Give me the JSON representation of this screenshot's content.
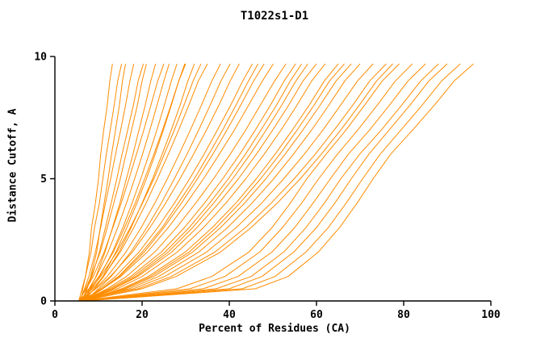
{
  "chart_data": {
    "type": "line",
    "title": "T1022s1-D1",
    "xlabel": "Percent of Residues (CA)",
    "ylabel": "Distance Cutoff, A",
    "xlim": [
      0,
      100
    ],
    "ylim": [
      0,
      10
    ],
    "x_ticks": [
      0,
      20,
      40,
      60,
      80,
      100
    ],
    "y_ticks": [
      0,
      5,
      10
    ],
    "grid": false,
    "legend": "none",
    "line_color": "#ff8c00",
    "axis_color": "#000000",
    "y_levels": [
      0,
      0.5,
      1,
      2,
      3,
      4,
      5,
      6,
      7,
      8,
      9,
      9.7
    ],
    "series": [
      {
        "x": [
          6.0,
          6.4,
          7.0,
          7.9,
          8.4,
          9.3,
          10.0,
          10.5,
          11.2,
          12.0,
          12.6,
          13.2
        ]
      },
      {
        "x": [
          5.5,
          6.2,
          7.0,
          8.3,
          9.1,
          10.2,
          11.0,
          11.8,
          12.7,
          13.6,
          14.4,
          15.3
        ]
      },
      {
        "x": [
          6.5,
          7.4,
          8.2,
          9.6,
          10.4,
          11.3,
          12.2,
          13.0,
          13.9,
          14.8,
          15.5,
          16.2
        ]
      },
      {
        "x": [
          5.8,
          6.8,
          7.8,
          9.3,
          10.5,
          11.6,
          12.8,
          13.9,
          15.1,
          16.2,
          17.2,
          18.1
        ]
      },
      {
        "x": [
          6.2,
          7.3,
          8.5,
          10.2,
          11.6,
          12.9,
          14.2,
          15.4,
          16.7,
          18.0,
          19.1,
          20.3
        ]
      },
      {
        "x": [
          5.6,
          7.0,
          8.3,
          10.4,
          12.0,
          13.5,
          15.0,
          16.3,
          17.6,
          18.9,
          20.0,
          21.0
        ]
      },
      {
        "x": [
          6.8,
          8.0,
          9.4,
          11.5,
          13.2,
          14.9,
          16.4,
          17.9,
          19.3,
          20.7,
          22.0,
          23.1
        ]
      },
      {
        "x": [
          5.4,
          7.2,
          8.8,
          11.3,
          13.3,
          15.2,
          17.0,
          18.7,
          20.4,
          22.0,
          23.6,
          25.0
        ]
      },
      {
        "x": [
          6.0,
          7.8,
          9.5,
          12.2,
          14.4,
          16.4,
          18.3,
          20.1,
          21.8,
          23.4,
          25.0,
          26.2
        ]
      },
      {
        "x": [
          6.4,
          8.4,
          10.3,
          13.2,
          15.6,
          17.7,
          19.7,
          21.6,
          23.4,
          25.1,
          26.7,
          28.0
        ]
      },
      {
        "x": [
          5.7,
          8.0,
          10.1,
          13.4,
          16.0,
          18.4,
          20.6,
          22.7,
          24.7,
          26.6,
          28.4,
          30.0
        ]
      },
      {
        "x": [
          6.6,
          9.0,
          11.2,
          14.7,
          17.5,
          20.0,
          22.4,
          24.6,
          26.7,
          28.7,
          30.5,
          32.0
        ]
      },
      {
        "x": [
          5.9,
          8.6,
          11.1,
          15.0,
          18.1,
          20.9,
          23.5,
          26.0,
          28.4,
          30.7,
          32.9,
          35.0
        ]
      },
      {
        "x": [
          6.1,
          9.2,
          12.0,
          16.3,
          19.8,
          22.9,
          25.8,
          28.5,
          31.1,
          33.6,
          36.0,
          38.0
        ]
      },
      {
        "x": [
          6.9,
          10.0,
          12.9,
          17.4,
          21.1,
          24.4,
          27.4,
          30.3,
          33.0,
          35.6,
          38.1,
          40.2
        ]
      },
      {
        "x": [
          5.5,
          9.4,
          12.7,
          17.8,
          21.8,
          25.4,
          28.7,
          31.8,
          34.8,
          37.6,
          40.2,
          42.3
        ]
      },
      {
        "x": [
          6.3,
          10.4,
          13.9,
          19.3,
          23.6,
          27.4,
          30.9,
          34.2,
          37.3,
          40.3,
          43.1,
          45.3
        ]
      },
      {
        "x": [
          6.7,
          11.0,
          14.8,
          20.5,
          25.0,
          29.0,
          32.7,
          36.2,
          39.5,
          42.6,
          45.6,
          48.0
        ]
      },
      {
        "x": [
          5.8,
          11.0,
          15.1,
          21.2,
          26.0,
          30.2,
          34.1,
          37.7,
          41.2,
          44.4,
          47.6,
          50.1
        ]
      },
      {
        "x": [
          6.5,
          12.0,
          16.4,
          22.9,
          27.9,
          32.3,
          36.4,
          40.2,
          43.8,
          47.1,
          50.4,
          53.0
        ]
      },
      {
        "x": [
          6.0,
          12.5,
          17.4,
          24.4,
          29.7,
          34.3,
          38.5,
          42.4,
          46.0,
          49.4,
          52.6,
          55.2
        ]
      },
      {
        "x": [
          6.8,
          13.4,
          18.6,
          26.0,
          31.6,
          36.4,
          40.8,
          44.8,
          48.5,
          52.0,
          55.3,
          58.0
        ]
      },
      {
        "x": [
          5.6,
          13.5,
          19.0,
          26.8,
          32.6,
          37.6,
          42.1,
          46.2,
          50.0,
          53.6,
          56.9,
          60.0
        ]
      },
      {
        "x": [
          6.2,
          14.3,
          20.0,
          28.1,
          34.1,
          39.2,
          43.8,
          48.0,
          51.9,
          55.5,
          58.9,
          62.0
        ]
      },
      {
        "x": [
          6.6,
          15.3,
          21.4,
          29.9,
          36.1,
          41.5,
          46.2,
          50.5,
          54.5,
          58.3,
          61.8,
          65.0
        ]
      },
      {
        "x": [
          5.9,
          16.2,
          22.7,
          31.6,
          38.0,
          43.5,
          48.4,
          52.8,
          56.9,
          60.8,
          64.5,
          68.0
        ]
      },
      {
        "x": [
          6.4,
          17.0,
          23.8,
          33.0,
          39.6,
          45.2,
          50.2,
          54.7,
          58.9,
          62.8,
          66.5,
          70.0
        ]
      },
      {
        "x": [
          6.1,
          18.0,
          25.2,
          34.8,
          41.6,
          47.4,
          52.5,
          57.2,
          61.5,
          65.5,
          69.4,
          73.0
        ]
      },
      {
        "x": [
          6.7,
          19.1,
          26.7,
          36.7,
          43.7,
          49.6,
          54.9,
          59.7,
          64.1,
          68.3,
          72.2,
          76.0
        ]
      },
      {
        "x": [
          5.7,
          28.0,
          36.0,
          44.5,
          49.8,
          54.0,
          57.8,
          62.2,
          66.8,
          71.0,
          75.1,
          79.0
        ]
      },
      {
        "x": [
          6.3,
          31.0,
          39.0,
          47.0,
          52.2,
          56.6,
          60.5,
          64.8,
          69.5,
          73.9,
          78.1,
          82.0
        ]
      },
      {
        "x": [
          6.0,
          34.0,
          42.0,
          49.8,
          55.0,
          59.2,
          63.2,
          67.3,
          72.2,
          76.7,
          81.0,
          85.0
        ]
      },
      {
        "x": [
          6.5,
          37.0,
          45.0,
          52.5,
          57.6,
          61.8,
          65.6,
          69.9,
          74.9,
          79.5,
          83.9,
          88.0
        ]
      },
      {
        "x": [
          5.8,
          40.0,
          47.5,
          54.8,
          60.0,
          64.2,
          68.0,
          72.0,
          76.7,
          81.4,
          85.8,
          90.0
        ]
      },
      {
        "x": [
          6.2,
          43.0,
          50.5,
          57.6,
          62.7,
          66.8,
          70.6,
          74.6,
          79.4,
          84.2,
          88.7,
          93.0
        ]
      },
      {
        "x": [
          6.6,
          46.0,
          53.5,
          60.4,
          65.3,
          69.3,
          73.0,
          77.0,
          82.1,
          87.0,
          91.6,
          96.0
        ]
      },
      {
        "x": [
          6.0,
          10.8,
          14.6,
          20.0,
          24.6,
          28.3,
          32.0,
          35.3,
          38.5,
          41.5,
          44.4,
          46.6
        ]
      },
      {
        "x": [
          6.4,
          13.0,
          18.0,
          25.3,
          30.8,
          35.5,
          39.8,
          43.7,
          47.3,
          50.8,
          54.0,
          56.6
        ]
      },
      {
        "x": [
          5.9,
          15.8,
          22.0,
          30.8,
          37.0,
          42.4,
          47.2,
          51.6,
          55.6,
          59.4,
          63.0,
          66.4
        ]
      },
      {
        "x": [
          6.2,
          20.0,
          27.8,
          38.0,
          45.0,
          51.0,
          56.3,
          61.1,
          65.6,
          69.8,
          73.8,
          77.5
        ]
      },
      {
        "x": [
          6.7,
          9.0,
          11.0,
          14.0,
          16.5,
          18.8,
          21.0,
          23.0,
          24.9,
          26.7,
          28.4,
          29.8
        ]
      },
      {
        "x": [
          5.5,
          8.2,
          10.5,
          14.2,
          17.3,
          20.1,
          22.7,
          25.1,
          27.4,
          29.6,
          31.7,
          33.5
        ]
      }
    ]
  }
}
